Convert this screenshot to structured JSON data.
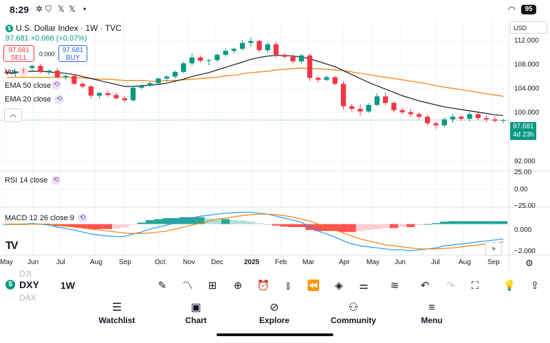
{
  "status_bar": {
    "time": "8:29",
    "icons": [
      "pinwheel-icon",
      "shield-icon",
      "x-icon",
      "x-icon",
      "dot-icon"
    ],
    "battery": "95"
  },
  "symbol": {
    "title": "U.S. Dollar Index · 1W · TVC",
    "price_line": "97.681  +0.066 (+0.07%)",
    "logo_letter": "$"
  },
  "trade": {
    "sell_price": "97.681",
    "sell_label": "SELL",
    "spread": "0.000",
    "buy_price": "97.681",
    "buy_label": "BUY"
  },
  "indicators": {
    "vol": "Vol",
    "ema50": "EMA 50 close",
    "ema20": "EMA 20 close",
    "rsi": "RSI 14 close",
    "macd": "MACD 12 26 close 9"
  },
  "price_axis": {
    "currency": "USD",
    "labels": [
      "112.000",
      "108.000",
      "104.000",
      "100.000",
      "92.000"
    ],
    "rsi_labels": [
      "25.00",
      "0.00",
      "−25.00"
    ],
    "macd_labels": [
      "0.000",
      "−2.000"
    ]
  },
  "last_price": {
    "value": "97.681",
    "countdown": "4d 23h"
  },
  "x_axis": [
    "May",
    "Jun",
    "Jul",
    "Aug",
    "Sep",
    "Oct",
    "Nov",
    "Dec",
    "2025",
    "Feb",
    "Mar",
    "Apr",
    "May",
    "Jun",
    "Jul",
    "Aug",
    "Sep"
  ],
  "bottom_bar": {
    "symbols_faded": [
      "DJI",
      "DXY",
      "DAX"
    ],
    "symbol": "DXY",
    "interval": "1W",
    "tools": [
      "pen-icon",
      "indicators-icon",
      "apps-icon",
      "plus-circle-icon",
      "alarm-icon",
      "candle-icon",
      "replay-icon",
      "layers-icon",
      "settings-sliders-icon",
      "trend-icon",
      "undo-icon",
      "redo-icon",
      "fullscreen-icon",
      "lightbulb-icon",
      "share-icon"
    ]
  },
  "nav": [
    {
      "label": "Watchlist",
      "icon": "watchlist-icon"
    },
    {
      "label": "Chart",
      "icon": "chart-icon"
    },
    {
      "label": "Explore",
      "icon": "compass-icon"
    },
    {
      "label": "Community",
      "icon": "community-icon"
    },
    {
      "label": "Menu",
      "icon": "menu-icon"
    }
  ],
  "colors": {
    "up": "#089981",
    "down": "#f23645",
    "ema50": "#f57c00",
    "ema20": "#131722",
    "macd": "#2196f3"
  },
  "chart_data": {
    "type": "candlestick",
    "title": "U.S. Dollar Index · 1W · TVC",
    "ylim": [
      90,
      113
    ],
    "candles": [
      [
        105.0,
        105.3,
        104.5,
        104.8
      ],
      [
        104.8,
        105.2,
        104.3,
        105.1
      ],
      [
        105.1,
        105.8,
        104.9,
        105.6
      ],
      [
        105.6,
        106.1,
        105.2,
        105.9
      ],
      [
        105.9,
        106.2,
        104.8,
        105.0
      ],
      [
        105.0,
        105.4,
        104.5,
        105.2
      ],
      [
        105.2,
        105.6,
        104.0,
        104.2
      ],
      [
        104.2,
        104.6,
        103.8,
        104.4
      ],
      [
        104.4,
        104.7,
        103.0,
        103.2
      ],
      [
        103.2,
        103.5,
        102.5,
        102.8
      ],
      [
        102.8,
        103.0,
        101.0,
        101.4
      ],
      [
        101.4,
        102.0,
        101.0,
        101.8
      ],
      [
        101.8,
        102.2,
        101.2,
        101.5
      ],
      [
        101.5,
        101.9,
        100.9,
        101.0
      ],
      [
        101.0,
        101.3,
        100.4,
        100.7
      ],
      [
        100.7,
        102.9,
        100.5,
        102.6
      ],
      [
        102.6,
        103.1,
        102.3,
        102.9
      ],
      [
        102.9,
        103.5,
        102.7,
        103.3
      ],
      [
        103.3,
        104.2,
        103.1,
        104.0
      ],
      [
        104.0,
        104.5,
        103.5,
        104.3
      ],
      [
        104.3,
        105.2,
        104.0,
        105.0
      ],
      [
        105.0,
        106.6,
        104.8,
        106.3
      ],
      [
        106.3,
        107.8,
        106.0,
        107.2
      ],
      [
        107.2,
        107.5,
        106.4,
        106.7
      ],
      [
        106.7,
        107.0,
        106.0,
        106.8
      ],
      [
        106.8,
        107.8,
        106.5,
        107.6
      ],
      [
        107.6,
        108.6,
        107.3,
        108.2
      ],
      [
        108.2,
        108.7,
        107.8,
        108.5
      ],
      [
        108.5,
        109.8,
        108.2,
        109.4
      ],
      [
        109.4,
        110.2,
        108.8,
        109.7
      ],
      [
        109.7,
        109.9,
        108.0,
        108.3
      ],
      [
        108.3,
        109.5,
        107.9,
        109.2
      ],
      [
        109.2,
        109.6,
        107.2,
        107.6
      ],
      [
        107.6,
        107.9,
        107.0,
        107.3
      ],
      [
        107.3,
        107.7,
        106.3,
        106.6
      ],
      [
        106.6,
        107.7,
        106.3,
        107.5
      ],
      [
        107.5,
        107.8,
        103.6,
        104.1
      ],
      [
        104.1,
        104.4,
        103.4,
        103.8
      ],
      [
        103.8,
        104.5,
        103.6,
        104.2
      ],
      [
        104.2,
        104.4,
        103.0,
        103.2
      ],
      [
        103.2,
        103.6,
        99.3,
        99.8
      ],
      [
        99.8,
        100.2,
        99.0,
        99.4
      ],
      [
        99.4,
        100.1,
        98.3,
        99.0
      ],
      [
        99.0,
        100.3,
        98.8,
        100.0
      ],
      [
        100.0,
        101.8,
        99.8,
        101.3
      ],
      [
        101.3,
        101.9,
        100.0,
        100.3
      ],
      [
        100.3,
        100.6,
        98.9,
        99.2
      ],
      [
        99.2,
        99.6,
        98.6,
        98.9
      ],
      [
        98.9,
        99.4,
        98.2,
        98.6
      ],
      [
        98.6,
        98.9,
        97.8,
        98.2
      ],
      [
        98.2,
        98.6,
        96.9,
        97.2
      ],
      [
        97.2,
        97.5,
        96.4,
        96.9
      ],
      [
        96.9,
        98.1,
        96.6,
        97.8
      ],
      [
        97.8,
        98.6,
        97.3,
        98.2
      ],
      [
        98.2,
        98.5,
        97.6,
        97.9
      ],
      [
        97.9,
        98.9,
        97.5,
        98.6
      ],
      [
        98.6,
        98.8,
        97.7,
        98.0
      ],
      [
        98.0,
        98.4,
        97.4,
        97.8
      ],
      [
        97.8,
        98.3,
        97.3,
        97.6
      ],
      [
        97.6,
        97.9,
        97.2,
        97.7
      ]
    ],
    "ema50": [
      104.2,
      104.2,
      104.2,
      104.2,
      104.2,
      104.2,
      104.2,
      104.2,
      104.1,
      104.1,
      104.0,
      103.9,
      103.9,
      103.8,
      103.7,
      103.7,
      103.7,
      103.6,
      103.6,
      103.7,
      103.7,
      103.8,
      103.9,
      104.0,
      104.1,
      104.2,
      104.4,
      104.5,
      104.7,
      104.9,
      105.0,
      105.1,
      105.3,
      105.4,
      105.5,
      105.6,
      105.5,
      105.5,
      105.4,
      105.3,
      105.2,
      105.0,
      104.8,
      104.6,
      104.4,
      104.2,
      104.0,
      103.8,
      103.6,
      103.4,
      103.2,
      102.9,
      102.7,
      102.5,
      102.3,
      102.1,
      101.9,
      101.7,
      101.5,
      101.3
    ],
    "ema20": [
      104.8,
      104.9,
      105.0,
      105.1,
      105.1,
      105.0,
      104.9,
      104.8,
      104.6,
      104.3,
      104.0,
      103.7,
      103.4,
      103.1,
      102.8,
      102.8,
      102.9,
      103.0,
      103.1,
      103.3,
      103.6,
      103.9,
      104.3,
      104.6,
      104.9,
      105.3,
      105.7,
      106.1,
      106.5,
      106.9,
      107.2,
      107.4,
      107.5,
      107.5,
      107.4,
      107.3,
      107.0,
      106.6,
      106.2,
      105.8,
      105.2,
      104.6,
      104.0,
      103.4,
      102.9,
      102.4,
      101.9,
      101.4,
      101.0,
      100.6,
      100.3,
      100.0,
      99.7,
      99.5,
      99.3,
      99.1,
      98.9,
      98.7,
      98.5,
      98.4
    ],
    "macd": {
      "ylim": [
        -3,
        1.5
      ],
      "macd": [
        0.0,
        0.0,
        0.0,
        0.05,
        0.0,
        -0.1,
        -0.3,
        -0.45,
        -0.6,
        -0.8,
        -1.0,
        -1.1,
        -1.2,
        -1.25,
        -1.25,
        -1.0,
        -0.8,
        -0.5,
        -0.3,
        -0.1,
        0.1,
        0.4,
        0.6,
        0.8,
        0.9,
        1.0,
        1.1,
        1.15,
        1.2,
        1.2,
        1.1,
        1.0,
        0.8,
        0.6,
        0.4,
        0.2,
        -0.3,
        -0.7,
        -1.0,
        -1.3,
        -1.7,
        -2.0,
        -2.2,
        -2.3,
        -2.4,
        -2.5,
        -2.6,
        -2.6,
        -2.7,
        -2.6,
        -2.5,
        -2.4,
        -2.2,
        -2.1,
        -2.0,
        -1.9,
        -1.8,
        -1.7,
        -1.6,
        -1.5
      ],
      "signal": [
        0.0,
        0.0,
        0.0,
        0.0,
        0.0,
        0.0,
        -0.1,
        -0.2,
        -0.3,
        -0.4,
        -0.5,
        -0.6,
        -0.7,
        -0.8,
        -0.9,
        -0.95,
        -0.95,
        -0.9,
        -0.8,
        -0.7,
        -0.5,
        -0.3,
        -0.1,
        0.1,
        0.3,
        0.5,
        0.6,
        0.75,
        0.85,
        0.95,
        1.0,
        1.0,
        0.95,
        0.85,
        0.7,
        0.5,
        0.3,
        0.0,
        -0.3,
        -0.6,
        -0.9,
        -1.2,
        -1.5,
        -1.7,
        -1.9,
        -2.1,
        -2.2,
        -2.3,
        -2.4,
        -2.5,
        -2.5,
        -2.5,
        -2.45,
        -2.4,
        -2.3,
        -2.2,
        -2.1,
        -2.0,
        -1.9,
        -1.8
      ],
      "hist": [
        0.0,
        0.0,
        0.0,
        0.05,
        0.0,
        -0.1,
        -0.2,
        -0.25,
        -0.3,
        -0.4,
        -0.5,
        -0.5,
        -0.5,
        -0.45,
        -0.35,
        -0.05,
        0.15,
        0.4,
        0.5,
        0.6,
        0.6,
        0.7,
        0.7,
        0.7,
        0.6,
        0.5,
        0.5,
        0.4,
        0.35,
        0.25,
        0.1,
        0.0,
        -0.15,
        -0.25,
        -0.3,
        -0.3,
        -0.6,
        -0.7,
        -0.7,
        -0.7,
        -0.8,
        -0.8,
        -0.7,
        -0.6,
        -0.5,
        -0.4,
        -0.4,
        -0.3,
        -0.3,
        -0.1,
        0.0,
        0.1,
        0.25,
        0.3,
        0.3,
        0.3,
        0.3,
        0.3,
        0.3,
        0.3
      ]
    }
  }
}
